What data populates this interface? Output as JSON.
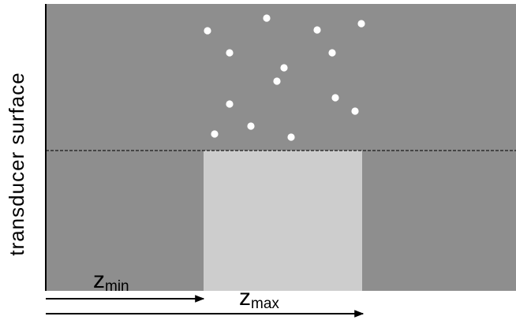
{
  "labels": {
    "vertical_axis": "transducer surface",
    "zmin_main": "z",
    "zmin_sub": "min",
    "zmax_main": "z",
    "zmax_sub": "max"
  },
  "colors": {
    "background": "#ffffff",
    "medium": "#8e8e8e",
    "inclusion": "#cdcdcd",
    "particles": "#ffffff",
    "dashed_line": "#1a1a1a",
    "axis": "#000000"
  },
  "particle_count": 14
}
